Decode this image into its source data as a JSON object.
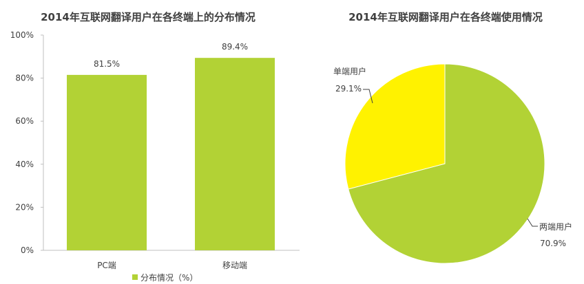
{
  "chart_data": [
    {
      "type": "bar",
      "title": "2014年互联网翻译用户在各终端上的分布情况",
      "categories": [
        "PC端",
        "移动端"
      ],
      "series": [
        {
          "name": "分布情况（%）",
          "values": [
            81.5,
            89.4
          ],
          "color": "#b2d235"
        }
      ],
      "data_labels": [
        "81.5%",
        "89.4%"
      ],
      "ylim": [
        0,
        100
      ],
      "yticks": [
        0,
        20,
        40,
        60,
        80,
        100
      ],
      "ytick_labels": [
        "0%",
        "20%",
        "40%",
        "60%",
        "80%",
        "100%"
      ],
      "grid": false,
      "legend_position": "bottom"
    },
    {
      "type": "pie",
      "title": "2014年互联网翻译用户在各终端使用情况",
      "slices": [
        {
          "label": "两端用户",
          "value": 70.9,
          "value_label": "70.9%",
          "color": "#b2d235"
        },
        {
          "label": "单端用户",
          "value": 29.1,
          "value_label": "29.1%",
          "color": "#fff200"
        }
      ]
    }
  ],
  "colors": {
    "green": "#b2d235",
    "yellow": "#fff200",
    "axis": "#bfbfbf",
    "text": "#404040"
  }
}
